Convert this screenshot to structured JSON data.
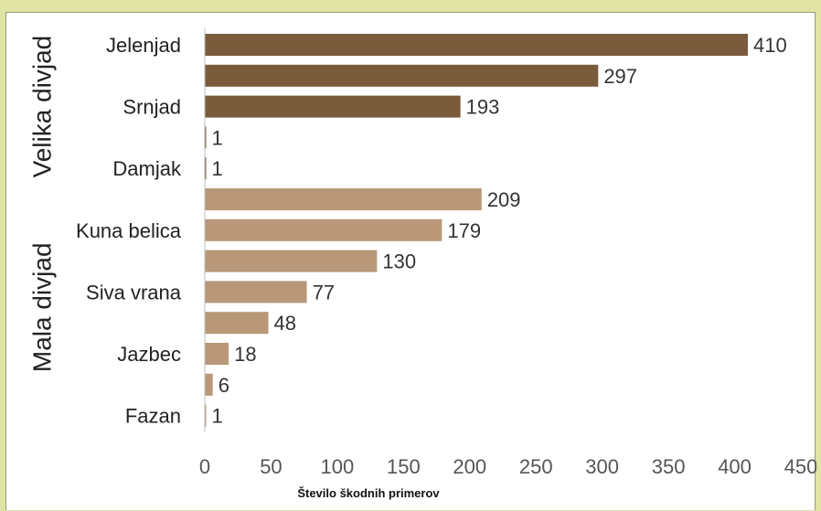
{
  "chart_data": {
    "type": "bar",
    "orientation": "horizontal",
    "xlabel": "Število škodnih primerov",
    "xlim": [
      0,
      450
    ],
    "xticks": [
      "0",
      "50",
      "100",
      "150",
      "200",
      "250",
      "300",
      "350",
      "400",
      "450"
    ],
    "grid": false,
    "groups": [
      {
        "label": "Velika divjad",
        "color": "#7a5c3c",
        "start": 0,
        "end": 4
      },
      {
        "label": "Mala divjad",
        "color": "#b89878",
        "start": 5,
        "end": 12
      }
    ],
    "bars": [
      {
        "category": "Jelenjad",
        "value": 410,
        "value_label": "410",
        "group": 0
      },
      {
        "category": "",
        "value": 297,
        "value_label": "297",
        "group": 0
      },
      {
        "category": "Srnjad",
        "value": 193,
        "value_label": "193",
        "group": 0
      },
      {
        "category": "",
        "value": 1,
        "value_label": "1",
        "group": 0
      },
      {
        "category": "Damjak",
        "value": 1,
        "value_label": "1",
        "group": 0
      },
      {
        "category": "",
        "value": 209,
        "value_label": "209",
        "group": 1
      },
      {
        "category": "Kuna belica",
        "value": 179,
        "value_label": "179",
        "group": 1
      },
      {
        "category": "",
        "value": 130,
        "value_label": "130",
        "group": 1
      },
      {
        "category": "Siva vrana",
        "value": 77,
        "value_label": "77",
        "group": 1
      },
      {
        "category": "",
        "value": 48,
        "value_label": "48",
        "group": 1
      },
      {
        "category": "Jazbec",
        "value": 18,
        "value_label": "18",
        "group": 1
      },
      {
        "category": "",
        "value": 6,
        "value_label": "6",
        "group": 1
      },
      {
        "category": "Fazan",
        "value": 1,
        "value_label": "1",
        "group": 1
      }
    ]
  }
}
